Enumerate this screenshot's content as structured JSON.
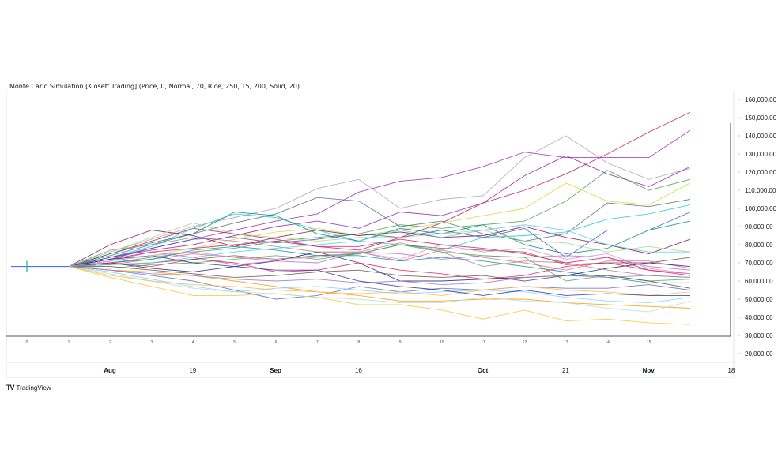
{
  "header": {
    "title": "Monte Carlo Simulation [Kioseff Trading] (Price, 0, Normal, 70, Rice, 250, 15, 200, Solid, 20)"
  },
  "footer": {
    "brand_text": "TradingView",
    "brand_logo": "TV"
  },
  "chart_data": {
    "type": "line",
    "title": "Monte Carlo Simulation [Kioseff Trading] (Price, 0, Normal, 70, Rice, 250, 15, 200, Solid, 20)",
    "xlabel": "",
    "ylabel": "",
    "ylim": [
      20000,
      160000
    ],
    "y_ticks": [
      "160,000.00",
      "150,000.00",
      "140,000.00",
      "130,000.00",
      "120,000.00",
      "110,000.00",
      "100,000.00",
      "90,000.00",
      "80,000.00",
      "70,000.00",
      "60,000.00",
      "50,000.00",
      "40,000.00",
      "30,000.00",
      "20,000.00"
    ],
    "step_labels": [
      "0",
      "1",
      "2",
      "3",
      "4",
      "5",
      "6",
      "7",
      "8",
      "9",
      "10",
      "11",
      "12",
      "13",
      "14",
      "15"
    ],
    "date_labels": [
      {
        "label": "Aug",
        "step": 2,
        "bold": true
      },
      {
        "label": "19",
        "step": 4,
        "bold": false
      },
      {
        "label": "Sep",
        "step": 6,
        "bold": true
      },
      {
        "label": "16",
        "step": 8,
        "bold": false
      },
      {
        "label": "Oct",
        "step": 11,
        "bold": true
      },
      {
        "label": "21",
        "step": 13,
        "bold": false
      },
      {
        "label": "Nov",
        "step": 15,
        "bold": true
      },
      {
        "label": "18",
        "step": 17,
        "bold": false
      }
    ],
    "start_value": 68000,
    "grid": false,
    "series": [
      {
        "color": "#c2185b",
        "values": [
          68000,
          75000,
          82000,
          89000,
          86000,
          83000,
          79000,
          77000,
          84000,
          92000,
          103000,
          110000,
          119000,
          130000,
          142000,
          153000
        ]
      },
      {
        "color": "#9c27b0",
        "values": [
          68000,
          72000,
          78000,
          83000,
          88000,
          93000,
          97000,
          109000,
          115000,
          117000,
          123000,
          131000,
          128000,
          128000,
          128000,
          143000
        ]
      },
      {
        "color": "#b0a0b8",
        "values": [
          68000,
          76000,
          83000,
          90000,
          95000,
          100000,
          111000,
          116000,
          100000,
          105000,
          107000,
          128000,
          140000,
          125000,
          116000,
          122000
        ]
      },
      {
        "color": "#8e24aa",
        "values": [
          68000,
          73000,
          77000,
          80000,
          85000,
          90000,
          93000,
          89000,
          98000,
          96000,
          103000,
          118000,
          129000,
          119000,
          112000,
          123000
        ]
      },
      {
        "color": "#43a047",
        "values": [
          68000,
          70000,
          73000,
          76000,
          78000,
          82000,
          84000,
          86000,
          91000,
          89000,
          91000,
          93000,
          104000,
          121000,
          110000,
          116000
        ]
      },
      {
        "color": "#546e7a",
        "values": [
          68000,
          74000,
          80000,
          86000,
          92000,
          97000,
          106000,
          104000,
          90000,
          93000,
          86000,
          82000,
          86000,
          103000,
          101000,
          105000
        ]
      },
      {
        "color": "#cddc39",
        "values": [
          68000,
          71000,
          74000,
          78000,
          83000,
          87000,
          89000,
          85000,
          88000,
          92000,
          96000,
          100000,
          114000,
          104000,
          102000,
          114000
        ]
      },
      {
        "color": "#880e4f",
        "values": [
          68000,
          80000,
          88000,
          85000,
          79000,
          84000,
          88000,
          85000,
          87000,
          84000,
          85000,
          90000,
          84000,
          80000,
          75000,
          83000
        ]
      },
      {
        "color": "#26c6da",
        "values": [
          68000,
          73000,
          79000,
          89000,
          97000,
          95000,
          88000,
          82000,
          80000,
          77000,
          84000,
          85000,
          87000,
          94000,
          97000,
          102000
        ]
      },
      {
        "color": "#00897b",
        "values": [
          68000,
          75000,
          81000,
          86000,
          98000,
          96000,
          86000,
          82000,
          89000,
          86000,
          91000,
          80000,
          75000,
          78000,
          88000,
          93000
        ]
      },
      {
        "color": "#3f51b5",
        "values": [
          68000,
          73000,
          78000,
          83000,
          84000,
          81000,
          83000,
          86000,
          84000,
          88000,
          84000,
          89000,
          73000,
          88000,
          88000,
          98000
        ]
      },
      {
        "color": "#f06292",
        "values": [
          68000,
          69000,
          72000,
          75000,
          73000,
          71000,
          76000,
          76000,
          71000,
          77000,
          73000,
          70000,
          66000,
          71000,
          71000,
          67000
        ]
      },
      {
        "color": "#0097a7",
        "values": [
          68000,
          70000,
          72000,
          77000,
          79000,
          77000,
          74000,
          74000,
          71000,
          73000,
          71000,
          68000,
          65000,
          62000,
          59000,
          59000
        ]
      },
      {
        "color": "#5c6bc0",
        "values": [
          68000,
          66000,
          63000,
          60000,
          55000,
          50000,
          52000,
          57000,
          54000,
          56000,
          55000,
          57000,
          56000,
          56000,
          58000,
          55000
        ]
      },
      {
        "color": "#fbc02d",
        "values": [
          68000,
          62000,
          57000,
          52000,
          52000,
          53000,
          51000,
          47000,
          47000,
          44000,
          39000,
          44000,
          38000,
          39000,
          37000,
          36000
        ]
      },
      {
        "color": "#ff9800",
        "values": [
          68000,
          66000,
          65000,
          63000,
          60000,
          57000,
          54000,
          52000,
          49000,
          49000,
          50000,
          50000,
          48000,
          47000,
          46000,
          45000
        ]
      },
      {
        "color": "#1a237e",
        "values": [
          68000,
          70000,
          67000,
          65000,
          68000,
          71000,
          76000,
          70000,
          60000,
          60000,
          61000,
          62000,
          63000,
          67000,
          70000,
          68000
        ]
      },
      {
        "color": "#ba68c8",
        "values": [
          68000,
          71000,
          76000,
          73000,
          69000,
          71000,
          70000,
          76000,
          75000,
          72000,
          74000,
          73000,
          74000,
          73000,
          68000,
          66000
        ]
      },
      {
        "color": "#a1887f",
        "values": [
          68000,
          77000,
          80000,
          84000,
          82000,
          79000,
          76000,
          76000,
          81000,
          76000,
          68000,
          71000,
          70000,
          66000,
          63000,
          62000
        ]
      },
      {
        "color": "#e91e63",
        "values": [
          68000,
          70000,
          68000,
          72000,
          70000,
          65000,
          66000,
          70000,
          66000,
          64000,
          61000,
          63000,
          68000,
          70000,
          66000,
          64000
        ]
      },
      {
        "color": "#d81b60",
        "values": [
          68000,
          72000,
          76000,
          78000,
          80000,
          82000,
          79000,
          79000,
          83000,
          80000,
          78000,
          75000,
          70000,
          73000,
          66000,
          63000
        ]
      },
      {
        "color": "#81d4fa",
        "values": [
          68000,
          65000,
          61000,
          57000,
          54000,
          56000,
          57000,
          55000,
          53000,
          54000,
          55000,
          54000,
          51000,
          49000,
          48000,
          51000
        ]
      },
      {
        "color": "#795548",
        "values": [
          68000,
          69000,
          70000,
          72000,
          74000,
          72000,
          74000,
          75000,
          80000,
          78000,
          77000,
          76000,
          69000,
          70000,
          70000,
          73000
        ]
      },
      {
        "color": "#4caf50",
        "values": [
          68000,
          67000,
          69000,
          70000,
          72000,
          74000,
          72000,
          75000,
          80000,
          76000,
          74000,
          73000,
          60000,
          63000,
          60000,
          61000
        ]
      },
      {
        "color": "#9575cd",
        "values": [
          68000,
          66000,
          64000,
          63000,
          61000,
          60000,
          61000,
          59000,
          60000,
          58000,
          59000,
          62000,
          63000,
          62000,
          63000,
          62000
        ]
      },
      {
        "color": "#b2dfdb",
        "values": [
          68000,
          64000,
          60000,
          56000,
          54000,
          53000,
          51000,
          50000,
          48000,
          48000,
          51000,
          49000,
          48000,
          45000,
          43000,
          49000
        ]
      },
      {
        "color": "#6d4c41",
        "values": [
          68000,
          68000,
          66000,
          64000,
          62000,
          63000,
          65000,
          66000,
          63000,
          62000,
          63000,
          60000,
          63000,
          63000,
          60000,
          56000
        ]
      },
      {
        "color": "#ffb74d",
        "values": [
          68000,
          63000,
          60000,
          58000,
          57000,
          55000,
          54000,
          53000,
          54000,
          52000,
          55000,
          57000,
          55000,
          54000,
          52000,
          54000
        ]
      },
      {
        "color": "#283593",
        "values": [
          68000,
          72000,
          74000,
          70000,
          68000,
          66000,
          66000,
          60000,
          57000,
          55000,
          52000,
          55000,
          52000,
          53000,
          52000,
          52000
        ]
      },
      {
        "color": "#aed581",
        "values": [
          68000,
          76000,
          84000,
          92000,
          86000,
          84000,
          82000,
          84000,
          84000,
          86000,
          88000,
          82000,
          81000,
          76000,
          79000,
          76000
        ]
      },
      {
        "color": "#ce93d8",
        "values": [
          68000,
          71000,
          74000,
          76000,
          73000,
          72000,
          73000,
          76000,
          72000,
          80000,
          76000,
          78000,
          72000,
          75000,
          67000,
          64000
        ]
      },
      {
        "color": "#4dd0e1",
        "values": [
          68000,
          69000,
          70000,
          73000,
          76000,
          78000,
          80000,
          82000,
          88000,
          84000,
          88000,
          91000,
          88000,
          80000,
          76000,
          76000
        ]
      }
    ]
  }
}
